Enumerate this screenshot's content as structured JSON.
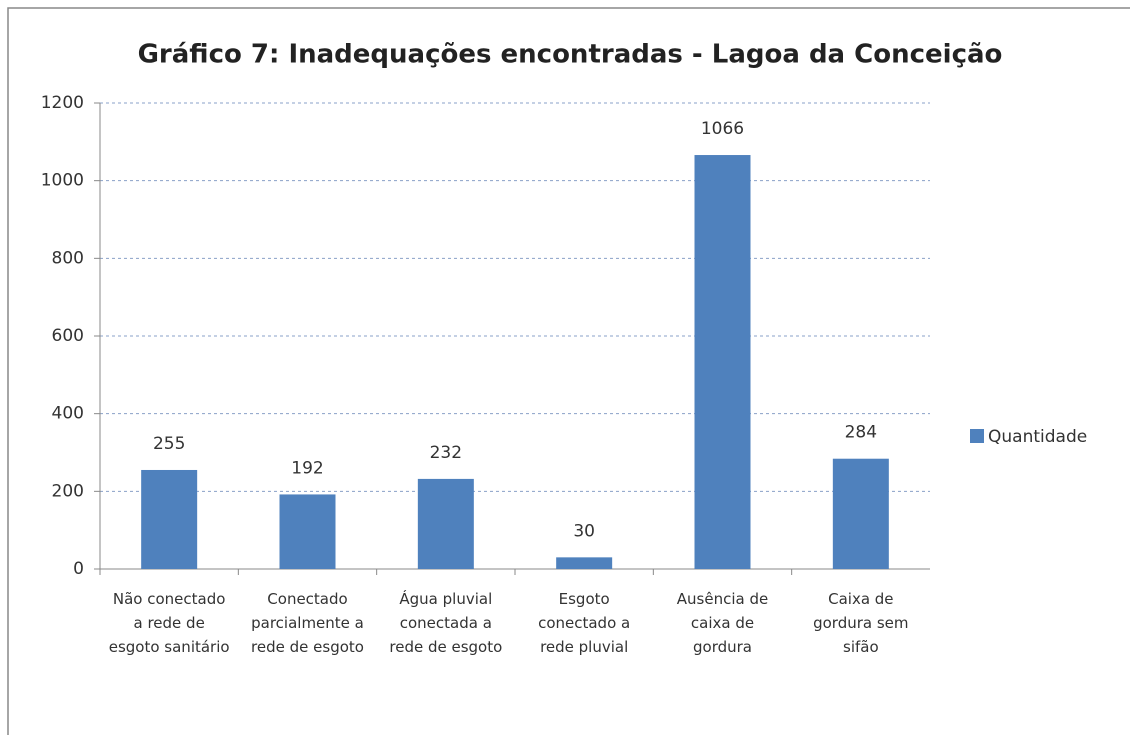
{
  "chart_data": {
    "type": "bar",
    "title": "Gráfico 7: Inadequações encontradas - Lagoa da Conceição",
    "categories": [
      "Não conectado a rede de esgoto sanitário",
      "Conectado parcialmente a rede de esgoto",
      "Água pluvial conectada a rede de esgoto",
      "Esgoto conectado a rede pluvial",
      "Ausência de caixa de gordura",
      "Caixa de gordura sem sifão"
    ],
    "series": [
      {
        "name": "Quantidade",
        "color": "#4f81bd",
        "values": [
          255,
          192,
          232,
          30,
          1066,
          284
        ]
      }
    ],
    "ylim": [
      0,
      1200
    ],
    "yticks": [
      0,
      200,
      400,
      600,
      800,
      1000,
      1200
    ],
    "grid": true,
    "legend": "right",
    "data_labels": true
  }
}
